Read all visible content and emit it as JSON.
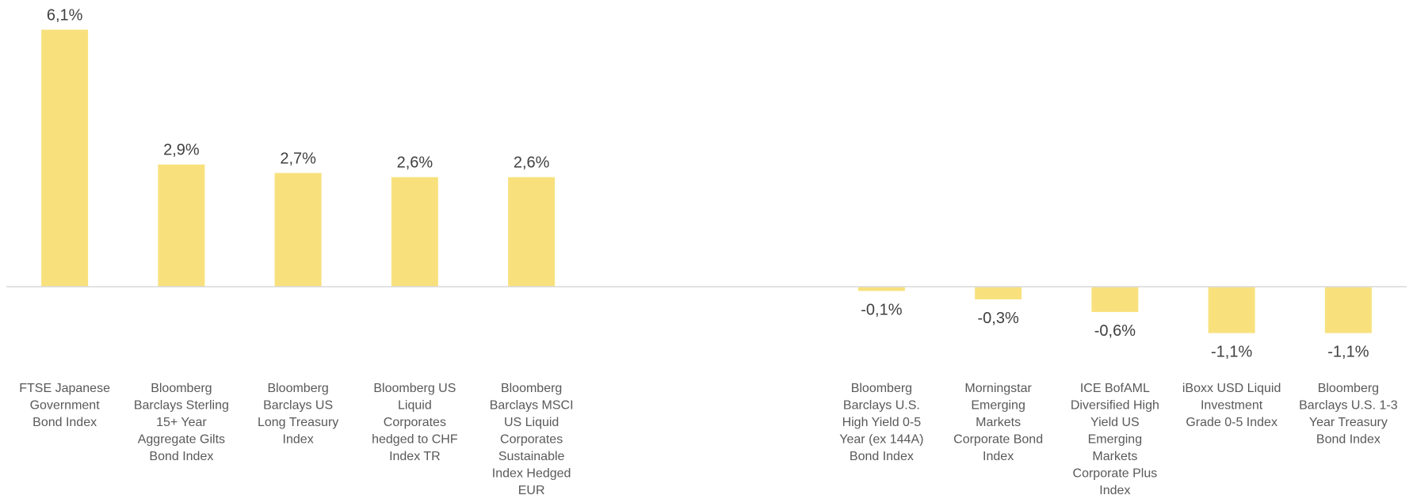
{
  "chart_data": {
    "type": "bar",
    "title": "",
    "xlabel": "",
    "ylabel": "",
    "ylim": [
      -1.5,
      6.6
    ],
    "grid": false,
    "legend": "none",
    "bar_color": "#F8E17D",
    "axis_color": "#D9D9D9",
    "categories": [
      "FTSE Japanese Government Bond Index",
      "Bloomberg Barclays Sterling 15+ Year Aggregate Gilts Bond Index",
      "Bloomberg Barclays US Long Treasury Index",
      "Bloomberg US Liquid Corporates hedged to CHF Index TR",
      "Bloomberg Barclays MSCI US Liquid Corporates Sustainable Index Hedged EUR",
      "",
      "",
      "Bloomberg Barclays U.S. High Yield 0-5 Year (ex 144A) Bond Index",
      "Morningstar Emerging Markets Corporate Bond Index",
      "ICE BofAML Diversified High Yield US Emerging Markets Corporate Plus Index",
      "iBoxx USD Liquid Investment Grade 0-5 Index",
      "Bloomberg Barclays U.S. 1-3 Year Treasury Bond Index"
    ],
    "category_lines": [
      [
        "FTSE Japanese",
        "Government",
        "Bond Index"
      ],
      [
        "Bloomberg",
        "Barclays Sterling",
        "15+ Year",
        "Aggregate Gilts",
        "Bond Index"
      ],
      [
        "Bloomberg",
        "Barclays US",
        "Long Treasury",
        "Index"
      ],
      [
        "Bloomberg US",
        "Liquid",
        "Corporates",
        "hedged to CHF",
        "Index TR"
      ],
      [
        "Bloomberg",
        "Barclays MSCI",
        "US Liquid",
        "Corporates",
        "Sustainable",
        "Index Hedged",
        "EUR"
      ],
      [],
      [],
      [
        "Bloomberg",
        "Barclays U.S.",
        "High Yield 0-5",
        "Year (ex 144A)",
        "Bond Index"
      ],
      [
        "Morningstar",
        "Emerging",
        "Markets",
        "Corporate Bond",
        "Index"
      ],
      [
        "ICE BofAML",
        "Diversified High",
        "Yield US",
        "Emerging",
        "Markets",
        "Corporate Plus",
        "Index"
      ],
      [
        "iBoxx USD Liquid",
        "Investment",
        "Grade 0-5 Index"
      ],
      [
        "Bloomberg",
        "Barclays U.S. 1-3",
        "Year Treasury",
        "Bond Index"
      ]
    ],
    "values": [
      6.1,
      2.9,
      2.7,
      2.6,
      2.6,
      null,
      null,
      -0.1,
      -0.3,
      -0.6,
      -1.1,
      -1.1
    ],
    "labels": [
      "6,1%",
      "2,9%",
      "2,7%",
      "2,6%",
      "2,6%",
      "",
      "",
      "-0,1%",
      "-0,3%",
      "-0,6%",
      "-1,1%",
      "-1,1%"
    ]
  }
}
